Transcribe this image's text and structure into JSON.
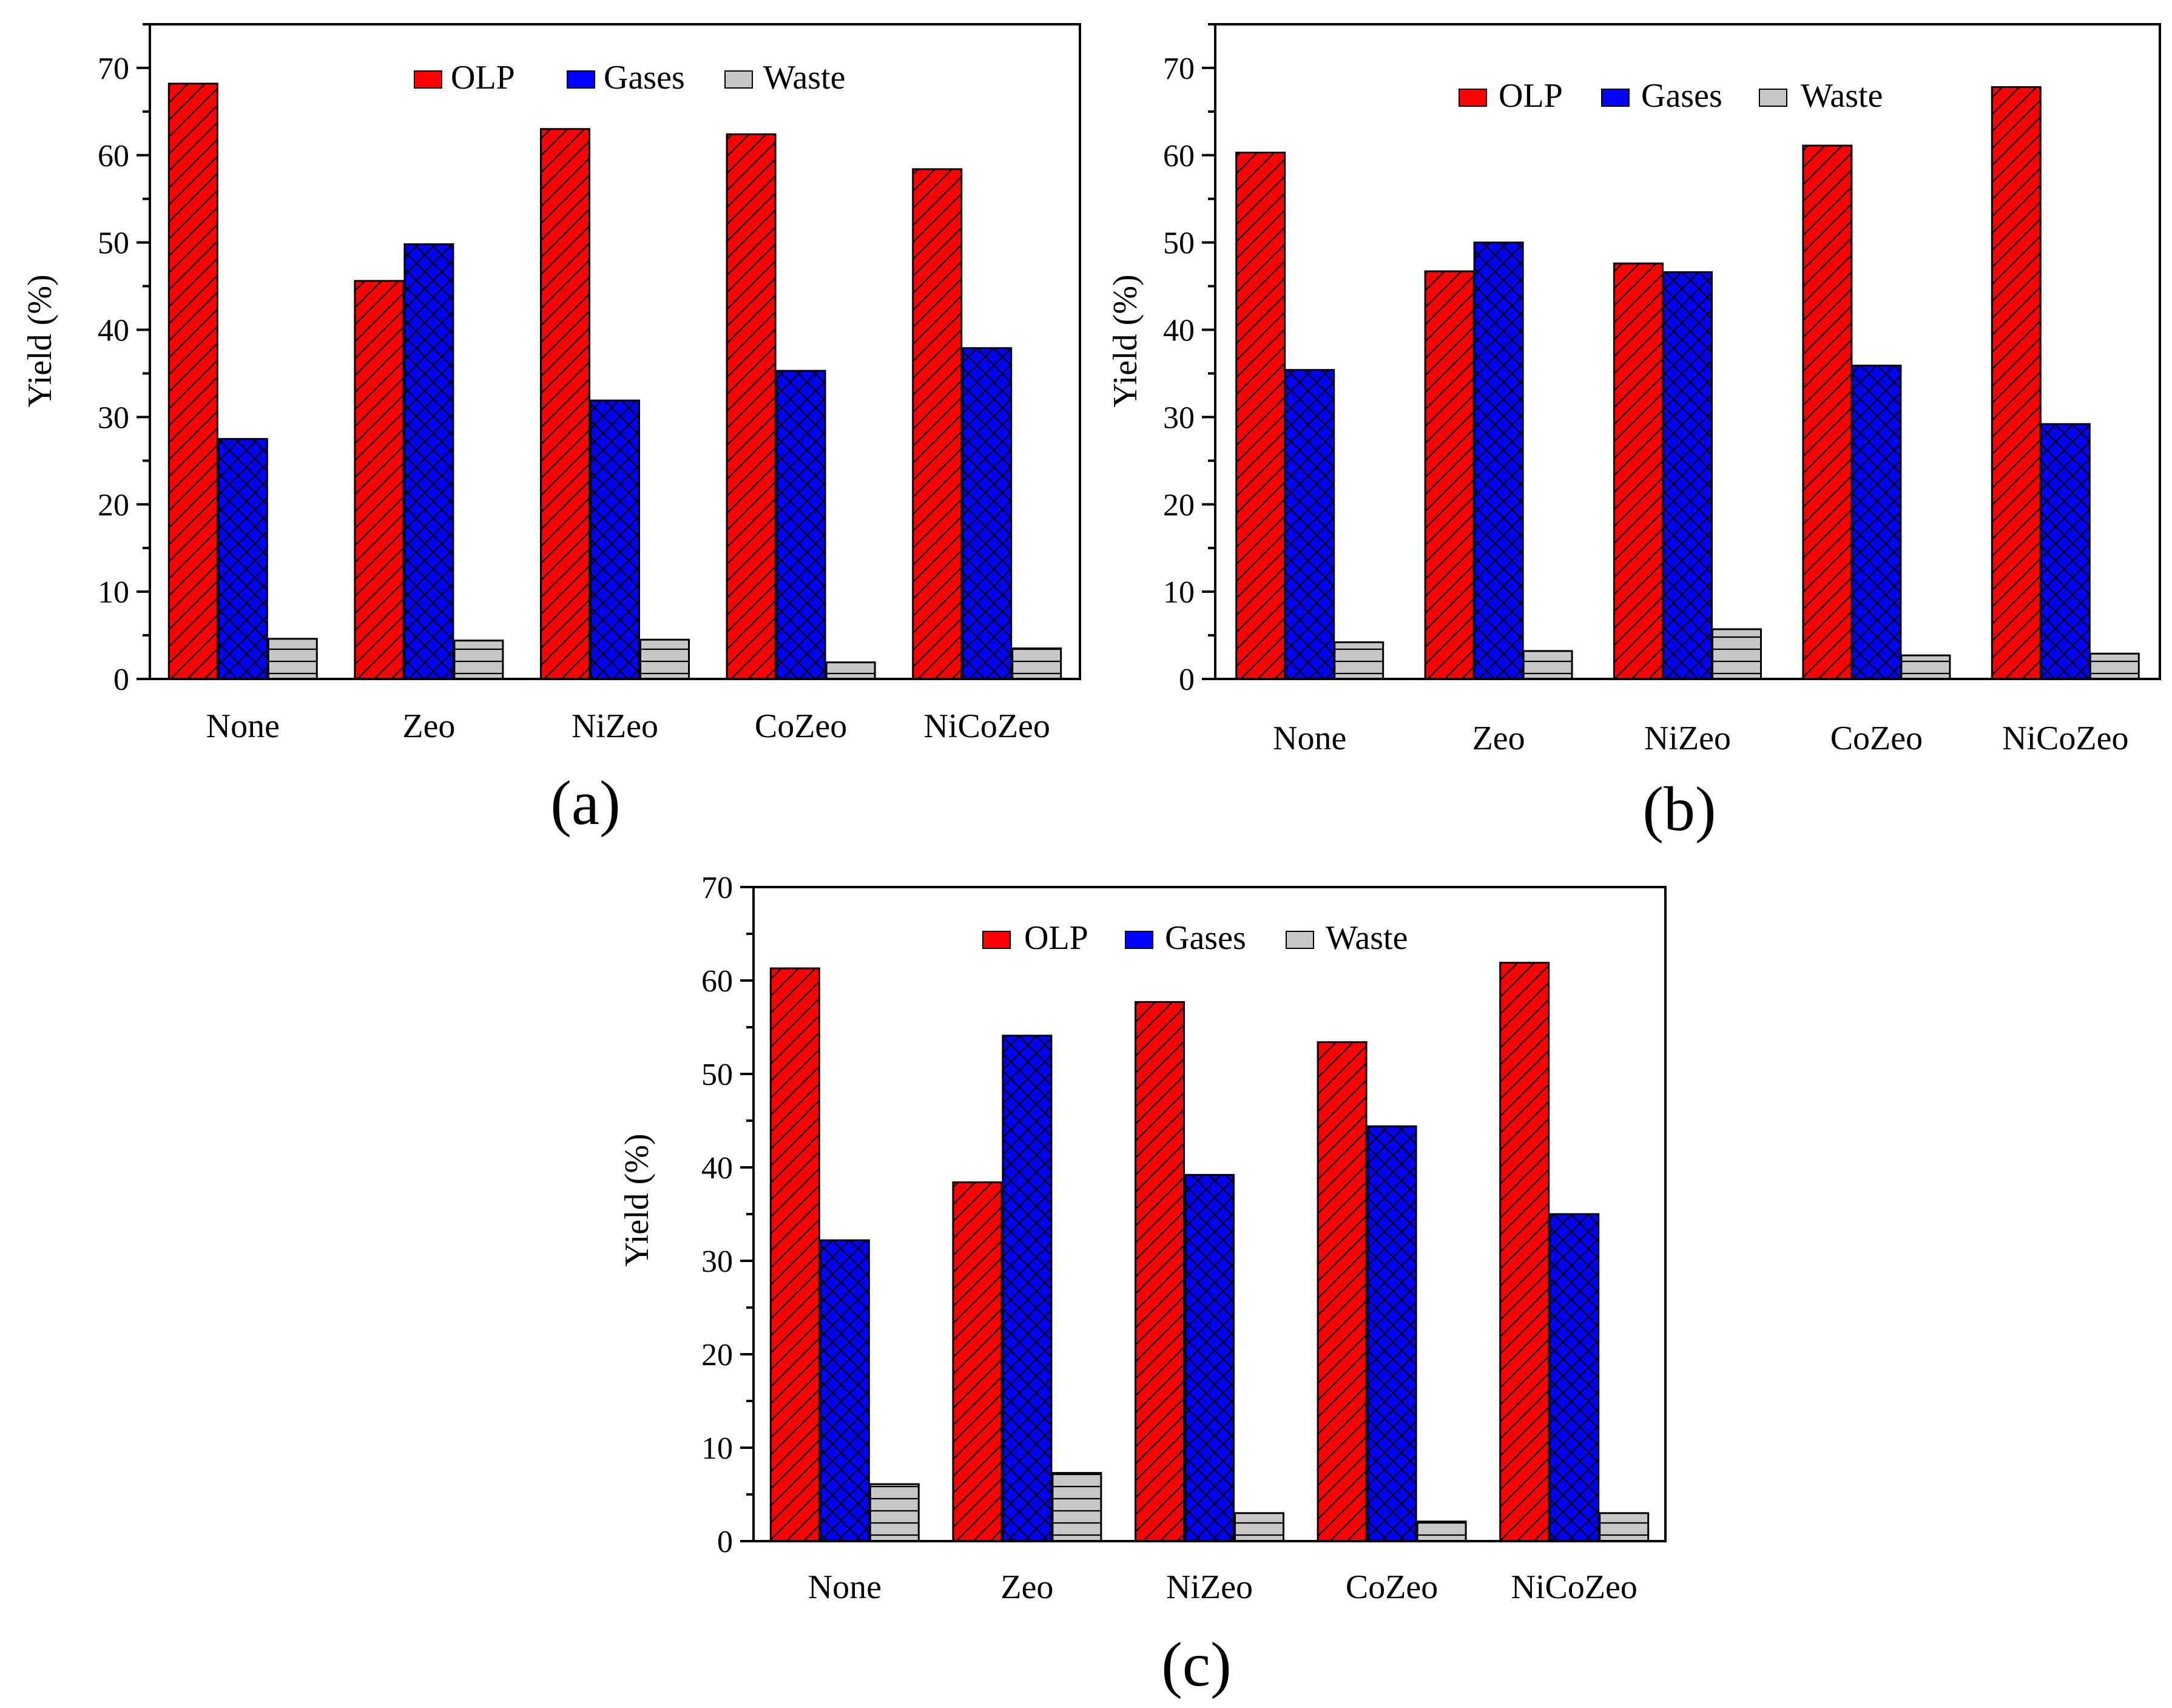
{
  "figure": {
    "panel_labels": [
      "(a)",
      "(b)",
      "(c)"
    ]
  },
  "colors": {
    "olp": "#ff0000",
    "gases": "#0000ff",
    "waste": "#c8c8c8",
    "outline": "#000000"
  },
  "chart_data": [
    {
      "type": "bar",
      "panel": "(a)",
      "categories": [
        "None",
        "Zeo",
        "NiZeo",
        "CoZeo",
        "NiCoZeo"
      ],
      "series": [
        {
          "name": "OLP",
          "values": [
            68.2,
            45.6,
            63.0,
            62.4,
            58.4
          ]
        },
        {
          "name": "Gases",
          "values": [
            27.5,
            49.8,
            31.9,
            35.3,
            37.9
          ]
        },
        {
          "name": "Waste",
          "values": [
            4.6,
            4.4,
            4.5,
            1.9,
            3.5
          ]
        }
      ],
      "ylabel": "Yield (%)",
      "xlabel": "",
      "ylim": [
        0,
        75
      ],
      "yticks": [
        "0",
        "10",
        "20",
        "30",
        "40",
        "50",
        "60",
        "70"
      ],
      "legend": [
        "OLP",
        "Gases",
        "Waste"
      ],
      "legend_position": "top-center"
    },
    {
      "type": "bar",
      "panel": "(b)",
      "categories": [
        "None",
        "Zeo",
        "NiZeo",
        "CoZeo",
        "NiCoZeo"
      ],
      "series": [
        {
          "name": "OLP",
          "values": [
            60.3,
            46.7,
            47.6,
            61.1,
            67.8
          ]
        },
        {
          "name": "Gases",
          "values": [
            35.4,
            50.0,
            46.6,
            35.9,
            29.2
          ]
        },
        {
          "name": "Waste",
          "values": [
            4.2,
            3.2,
            5.7,
            2.7,
            2.9
          ]
        }
      ],
      "ylabel": "Yield (%)",
      "xlabel": "",
      "ylim": [
        0,
        75
      ],
      "yticks": [
        "0",
        "10",
        "20",
        "30",
        "40",
        "50",
        "60",
        "70"
      ],
      "legend": [
        "OLP",
        "Gases",
        "Waste"
      ],
      "legend_position": "top-center"
    },
    {
      "type": "bar",
      "panel": "(c)",
      "categories": [
        "None",
        "Zeo",
        "NiZeo",
        "CoZeo",
        "NiCoZeo"
      ],
      "series": [
        {
          "name": "OLP",
          "values": [
            61.3,
            38.4,
            57.7,
            53.4,
            61.9
          ]
        },
        {
          "name": "Gases",
          "values": [
            32.2,
            54.1,
            39.2,
            44.4,
            35.0
          ]
        },
        {
          "name": "Waste",
          "values": [
            6.1,
            7.3,
            3.0,
            2.1,
            3.0
          ]
        }
      ],
      "ylabel": "Yield (%)",
      "xlabel": "",
      "ylim": [
        0,
        70
      ],
      "yticks": [
        "0",
        "10",
        "20",
        "30",
        "40",
        "50",
        "60",
        "70"
      ],
      "legend": [
        "OLP",
        "Gases",
        "Waste"
      ],
      "legend_position": "top-center"
    }
  ]
}
